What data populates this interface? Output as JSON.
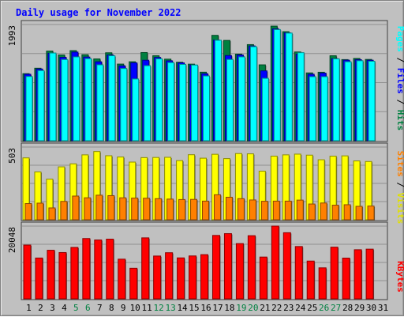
{
  "chart_data": {
    "type": "bar",
    "title": "Daily usage for November 2022",
    "categories": [
      "1",
      "2",
      "3",
      "4",
      "5",
      "6",
      "7",
      "8",
      "9",
      "10",
      "11",
      "12",
      "13",
      "14",
      "15",
      "16",
      "17",
      "18",
      "19",
      "20",
      "21",
      "22",
      "23",
      "24",
      "25",
      "26",
      "27",
      "28",
      "29",
      "30",
      "31"
    ],
    "weekend_days": [
      "5",
      "6",
      "12",
      "13",
      "19",
      "20",
      "26",
      "27"
    ],
    "panels": [
      {
        "id": "hits-panel",
        "max_label": "1993",
        "ylim": [
          0,
          1993
        ],
        "series": [
          {
            "name": "Hits",
            "color": "#008040",
            "values": [
              1150,
              1243,
              1537,
              1470,
              1545,
              1475,
              1403,
              1508,
              1314,
              1354,
              1512,
              1457,
              1399,
              1346,
              1313,
              1175,
              1807,
              1720,
              1485,
              1648,
              1301,
              1965,
              1870,
              1522,
              1163,
              1174,
              1457,
              1391,
              1411,
              1394,
              0
            ]
          },
          {
            "name": "Files",
            "color": "#0000ff",
            "values": [
              1140,
              1230,
              1500,
              1430,
              1520,
              1435,
              1354,
              1470,
              1284,
              1336,
              1380,
              1428,
              1370,
              1335,
              1297,
              1149,
              1725,
              1460,
              1470,
              1625,
              1198,
              1918,
              1850,
              1483,
              1140,
              1160,
              1407,
              1381,
              1390,
              1380,
              0
            ]
          },
          {
            "name": "Pages",
            "color": "#00ffff",
            "values": [
              1102,
              1203,
              1504,
              1392,
              1438,
              1407,
              1302,
              1457,
              1239,
              1059,
              1287,
              1404,
              1340,
              1309,
              1298,
              1111,
              1723,
              1394,
              1438,
              1613,
              1070,
              1906,
              1846,
              1510,
              1098,
              1098,
              1404,
              1354,
              1372,
              1363,
              0
            ]
          }
        ]
      },
      {
        "id": "visits-panel",
        "max_label": "503",
        "ylim": [
          0,
          503
        ],
        "series": [
          {
            "name": "Visits",
            "color": "#ffff00",
            "values": [
              428,
              331,
              281,
              366,
              387,
              449,
              472,
              443,
              434,
              399,
              430,
              431,
              432,
              409,
              450,
              426,
              453,
              423,
              458,
              456,
              336,
              440,
              449,
              454,
              447,
              415,
              440,
              442,
              407,
              403,
              0
            ]
          },
          {
            "name": "Sites",
            "color": "#ff8000",
            "values": [
              112,
              115,
              82,
              127,
              164,
              152,
              170,
              167,
              152,
              150,
              149,
              146,
              143,
              140,
              141,
              129,
              173,
              156,
              146,
              137,
              128,
              129,
              129,
              136,
              109,
              116,
              101,
              104,
              93,
              95,
              0
            ]
          }
        ]
      },
      {
        "id": "kbytes-panel",
        "max_label": "20048",
        "ylim": [
          0,
          20048
        ],
        "series": [
          {
            "name": "KBytes",
            "color": "#ff0000",
            "values": [
              14813,
              11250,
              13391,
              12757,
              14173,
              16618,
              16222,
              16449,
              10930,
              8425,
              16805,
              11795,
              12707,
              11283,
              11825,
              12179,
              17476,
              17966,
              15224,
              17406,
              11512,
              20048,
              18226,
              14418,
              10408,
              8540,
              14243,
              11226,
              13532,
              13694,
              0
            ]
          }
        ]
      }
    ]
  }
}
